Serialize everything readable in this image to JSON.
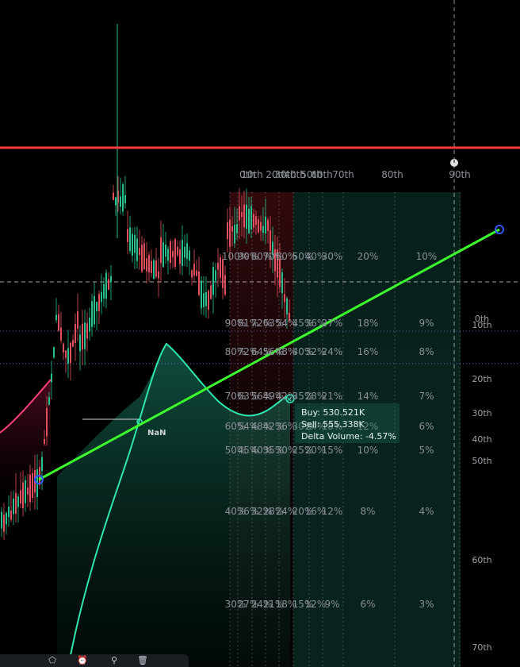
{
  "chart": {
    "resistance_color": "#ff3b3b",
    "trendline_color": "#3dff2d",
    "handle_color": "#3557ff",
    "oscillator_color": "#2ee6b0",
    "envelope_color": "#ff3f7a",
    "bull_candle_color": "#27c28f",
    "bear_candle_color": "#e2505c"
  },
  "percentile_headers": [
    "0th",
    "10th",
    "20th",
    "30th",
    "40th",
    "50th",
    "60th",
    "70th",
    "80th",
    "90th"
  ],
  "percentile_grid": {
    "rows": [
      [
        "100%",
        "90%",
        "80%",
        "70%",
        "60%",
        "50%",
        "40%",
        "30%",
        "20%",
        "10%"
      ],
      [
        "90%",
        "81%",
        "72%",
        "63%",
        "54%",
        "45%",
        "36%",
        "27%",
        "18%",
        "9%"
      ],
      [
        "80%",
        "72%",
        "64%",
        "56%",
        "48%",
        "40%",
        "32%",
        "24%",
        "16%",
        "8%"
      ],
      [
        "70%",
        "63%",
        "56%",
        "49%",
        "42%",
        "35%",
        "28%",
        "21%",
        "14%",
        "7%"
      ],
      [
        "60%",
        "54%",
        "48%",
        "42%",
        "36%",
        "30%",
        "24%",
        "18%",
        "12%",
        "6%"
      ],
      [
        "50%",
        "45%",
        "40%",
        "35%",
        "30%",
        "25%",
        "20%",
        "15%",
        "10%",
        "5%"
      ],
      [
        "40%",
        "36%",
        "32%",
        "28%",
        "24%",
        "20%",
        "16%",
        "12%",
        "8%",
        "4%"
      ],
      [
        "30%",
        "27%",
        "24%",
        "21%",
        "18%",
        "15%",
        "12%",
        "9%",
        "6%",
        "3%"
      ]
    ]
  },
  "right_axis_labels": [
    "0th",
    "10th",
    "20th",
    "30th",
    "40th",
    "50th",
    "60th",
    "70th"
  ],
  "nan_label": "NaN",
  "tooltip": {
    "buy": "Buy: 530.521K",
    "sell": "Sell: 555.338K",
    "delta": "Delta Volume: -4.57%"
  },
  "toolbar": {
    "icons": [
      "shapes-icon",
      "alarm-icon",
      "pin-icon",
      "trash-icon"
    ]
  }
}
